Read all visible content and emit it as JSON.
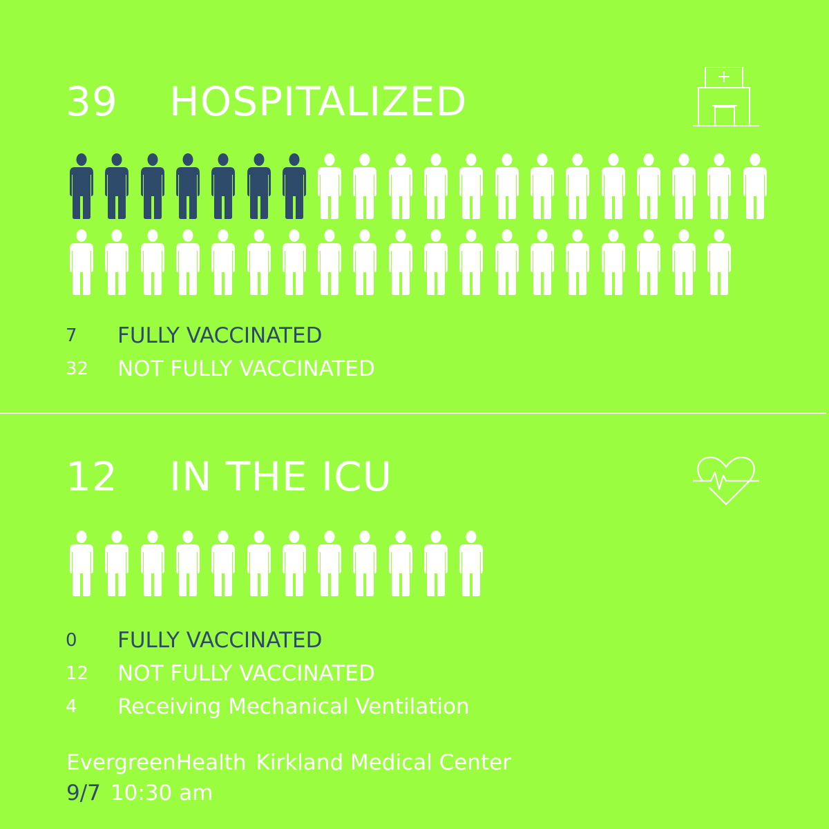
{
  "hospitalized": {
    "count": "39",
    "title": "HOSPITALIZED",
    "icon": "hospital-icon",
    "vaccinated_figures": 7,
    "unvaccinated_figures": 32,
    "legend": [
      {
        "num": "7",
        "label": "FULLY VACCINATED",
        "status": "vaccinated"
      },
      {
        "num": "32",
        "label": "NOT FULLY VACCINATED",
        "status": "not-vaccinated"
      }
    ]
  },
  "icu": {
    "count": "12",
    "title": "IN THE ICU",
    "icon": "heart-rate-icon",
    "vaccinated_figures": 0,
    "unvaccinated_figures": 12,
    "legend": [
      {
        "num": "0",
        "label": "FULLY VACCINATED",
        "status": "vaccinated"
      },
      {
        "num": "12",
        "label": "NOT FULLY VACCINATED",
        "status": "not-vaccinated"
      },
      {
        "num": "4",
        "label": "Receiving Mechanical Ventilation",
        "status": "ventilation"
      }
    ]
  },
  "footer": {
    "org": "EvergreenHealth",
    "location": "Kirkland Medical Center",
    "date": "9/7",
    "time": "10:30 am"
  },
  "colors": {
    "background": "#9BFD3F",
    "vaccinated": "#2E4A6B",
    "not_vaccinated": "#FFFFFF"
  }
}
